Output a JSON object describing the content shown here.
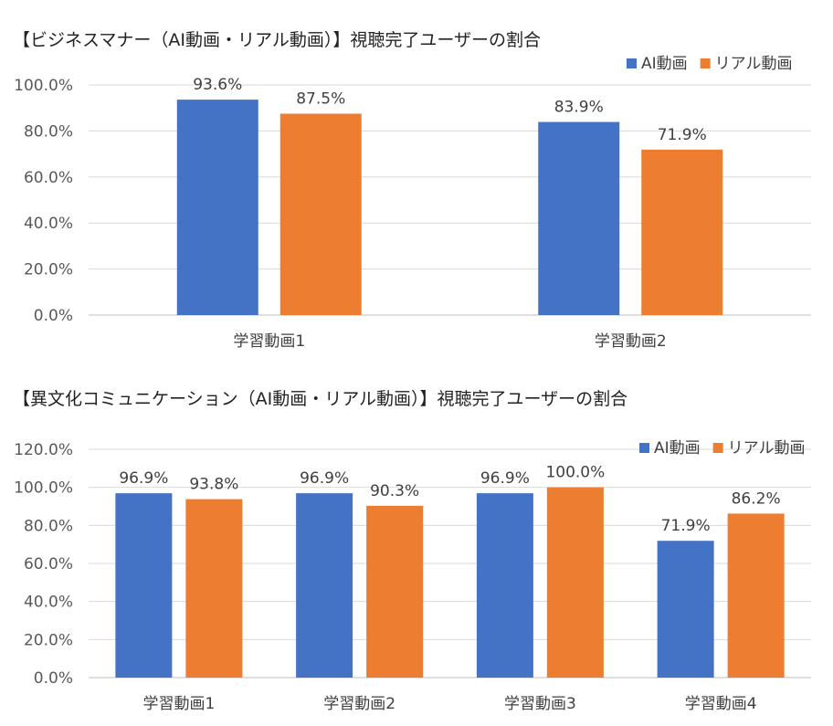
{
  "chart_data": [
    {
      "type": "bar",
      "title": "【ビジネスマナー（AI動画・リアル動画）】視聴完了ユーザーの割合",
      "categories": [
        "学習動画1",
        "学習動画2"
      ],
      "series": [
        {
          "name": "AI動画",
          "values": [
            93.6,
            83.9
          ],
          "labels": [
            "93.6%",
            "83.9%"
          ],
          "color": "#4472C4"
        },
        {
          "name": "リアル動画",
          "values": [
            87.5,
            71.9
          ],
          "labels": [
            "87.5%",
            "71.9%"
          ],
          "color": "#ED7D31"
        }
      ],
      "ylim": [
        0,
        100
      ],
      "yticks": [
        "0.0%",
        "20.0%",
        "40.0%",
        "60.0%",
        "80.0%",
        "100.0%"
      ],
      "grid": true,
      "legend": "top-right"
    },
    {
      "type": "bar",
      "title": "【異文化コミュニケーション（AI動画・リアル動画）】視聴完了ユーザーの割合",
      "categories": [
        "学習動画1",
        "学習動画2",
        "学習動画3",
        "学習動画4"
      ],
      "series": [
        {
          "name": "AI動画",
          "values": [
            96.9,
            96.9,
            96.9,
            71.9
          ],
          "labels": [
            "96.9%",
            "96.9%",
            "96.9%",
            "71.9%"
          ],
          "color": "#4472C4"
        },
        {
          "name": "リアル動画",
          "values": [
            93.8,
            90.3,
            100.0,
            86.2
          ],
          "labels": [
            "93.8%",
            "90.3%",
            "100.0%",
            "86.2%"
          ],
          "color": "#ED7D31"
        }
      ],
      "ylim": [
        0,
        120
      ],
      "yticks": [
        "0.0%",
        "20.0%",
        "40.0%",
        "60.0%",
        "80.0%",
        "100.0%",
        "120.0%"
      ],
      "grid": true,
      "legend": "top-right"
    }
  ]
}
